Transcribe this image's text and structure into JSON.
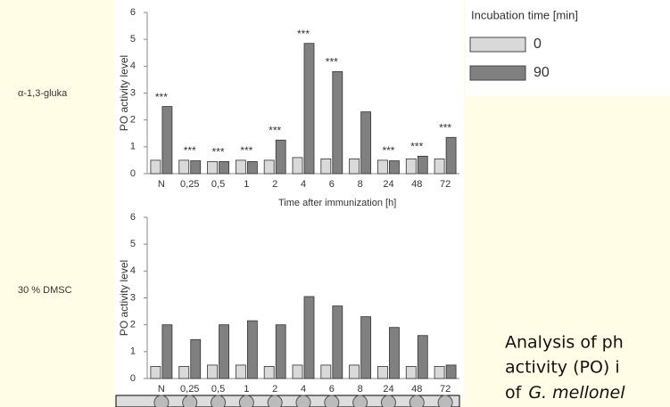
{
  "chart_data": [
    {
      "type": "bar",
      "label": "α-1,3-gluka",
      "y_label": "PO activity level",
      "x_label": "Time after immunization [h]",
      "categories": [
        "N",
        "0,25",
        "0,5",
        "1",
        "2",
        "4",
        "6",
        "8",
        "24",
        "48",
        "72"
      ],
      "series": [
        {
          "name": "0",
          "color": "#d9d9d9",
          "values": [
            0.5,
            0.5,
            0.45,
            0.5,
            0.5,
            0.6,
            0.55,
            0.55,
            0.5,
            0.55,
            0.55
          ]
        },
        {
          "name": "90",
          "color": "#808080",
          "values": [
            2.5,
            0.48,
            0.45,
            0.45,
            1.25,
            4.85,
            3.8,
            2.3,
            0.48,
            0.65,
            1.35
          ]
        }
      ],
      "significance": [
        "***",
        "***",
        "***",
        "***",
        "***",
        "***",
        "***",
        null,
        "***",
        "***",
        "***"
      ],
      "ylim": [
        0,
        6
      ],
      "yticks": [
        0,
        1,
        2,
        3,
        4,
        5,
        6
      ]
    },
    {
      "type": "bar",
      "label": "30 % DMSC",
      "y_label": "PO activity level",
      "categories": [
        "N",
        "0,25",
        "0,5",
        "1",
        "2",
        "4",
        "6",
        "8",
        "24",
        "48",
        "72"
      ],
      "series": [
        {
          "name": "0",
          "color": "#d9d9d9",
          "values": [
            0.45,
            0.45,
            0.5,
            0.5,
            0.45,
            0.5,
            0.5,
            0.5,
            0.45,
            0.45,
            0.45
          ]
        },
        {
          "name": "90",
          "color": "#808080",
          "values": [
            2.0,
            1.45,
            2.0,
            2.15,
            2.0,
            3.05,
            2.7,
            2.3,
            1.9,
            1.6,
            0.5
          ]
        }
      ],
      "ylim": [
        0,
        6
      ],
      "yticks": [
        0,
        1,
        2,
        3,
        4,
        5,
        6
      ]
    }
  ],
  "legend_title": "Incubation time [min]",
  "caption_lines": [
    "Analysis of ph",
    "activity (PO) i"
  ],
  "caption_last": [
    "of",
    "G. mellonel"
  ]
}
